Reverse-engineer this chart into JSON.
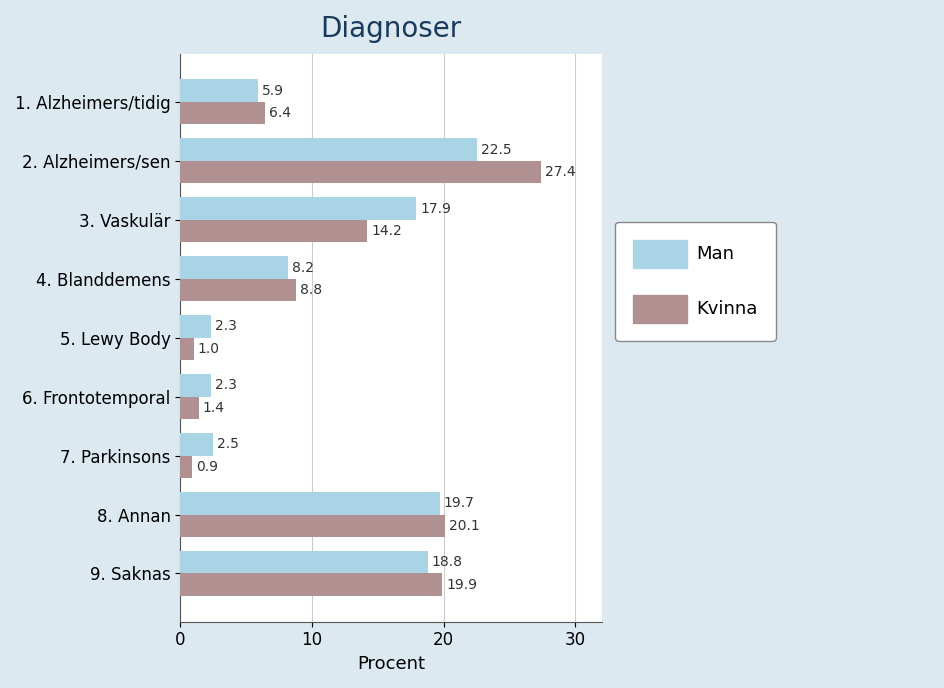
{
  "title": "Diagnoser",
  "categories": [
    "1. Alzheimers/tidig",
    "2. Alzheimers/sen",
    "3. Vaskulär",
    "4. Blanddemens",
    "5. Lewy Body",
    "6. Frontotemporal",
    "7. Parkinsons",
    "8. Annan",
    "9. Saknas"
  ],
  "man_values": [
    5.9,
    22.5,
    17.9,
    8.2,
    2.3,
    2.3,
    2.5,
    19.7,
    18.8
  ],
  "kvinna_values": [
    6.4,
    27.4,
    14.2,
    8.8,
    1.0,
    1.4,
    0.9,
    20.1,
    19.9
  ],
  "man_color": "#a8d4e6",
  "kvinna_color": "#b09090",
  "background_color": "#dce9f0",
  "plot_background": "#ffffff",
  "xlabel": "Procent",
  "xlim": [
    0,
    32
  ],
  "xticks": [
    0,
    10,
    20,
    30
  ],
  "bar_height": 0.38,
  "title_fontsize": 20,
  "axis_label_fontsize": 13,
  "tick_fontsize": 12,
  "legend_fontsize": 13,
  "annotation_fontsize": 10
}
